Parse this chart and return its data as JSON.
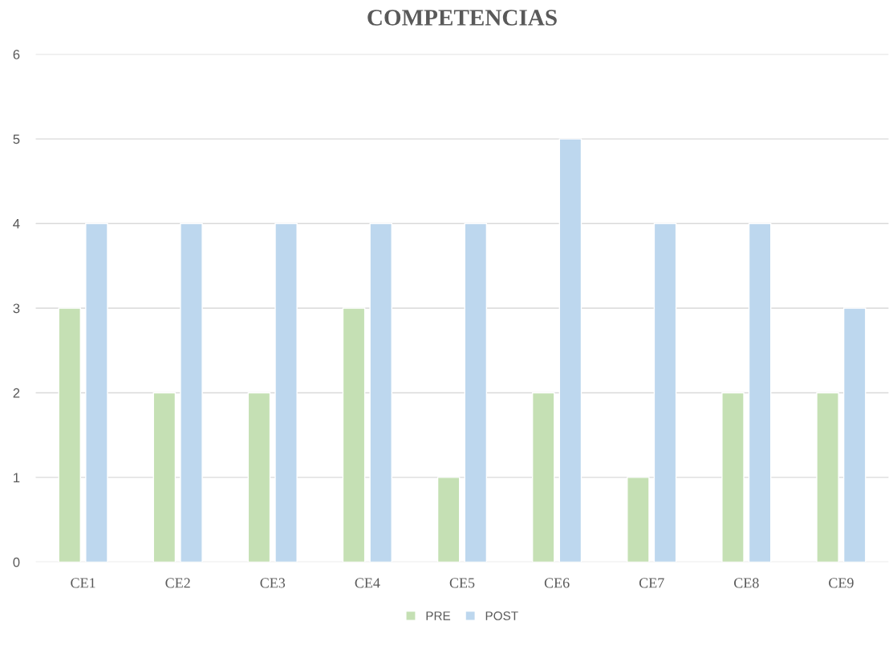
{
  "chart_data": {
    "type": "bar",
    "title": "COMPETENCIAS",
    "categories": [
      "CE1",
      "CE2",
      "CE3",
      "CE4",
      "CE5",
      "CE6",
      "CE7",
      "CE8",
      "CE9"
    ],
    "series": [
      {
        "name": "PRE",
        "color": "#c5e0b4",
        "values": [
          3,
          2,
          2,
          3,
          1,
          2,
          1,
          2,
          2
        ]
      },
      {
        "name": "POST",
        "color": "#bdd7ee",
        "values": [
          4,
          4,
          4,
          4,
          4,
          5,
          4,
          4,
          3
        ]
      }
    ],
    "ylim": [
      0,
      6
    ],
    "yticks": [
      0,
      1,
      2,
      3,
      4,
      5,
      6
    ],
    "grid": "y",
    "legend": "bottom"
  }
}
